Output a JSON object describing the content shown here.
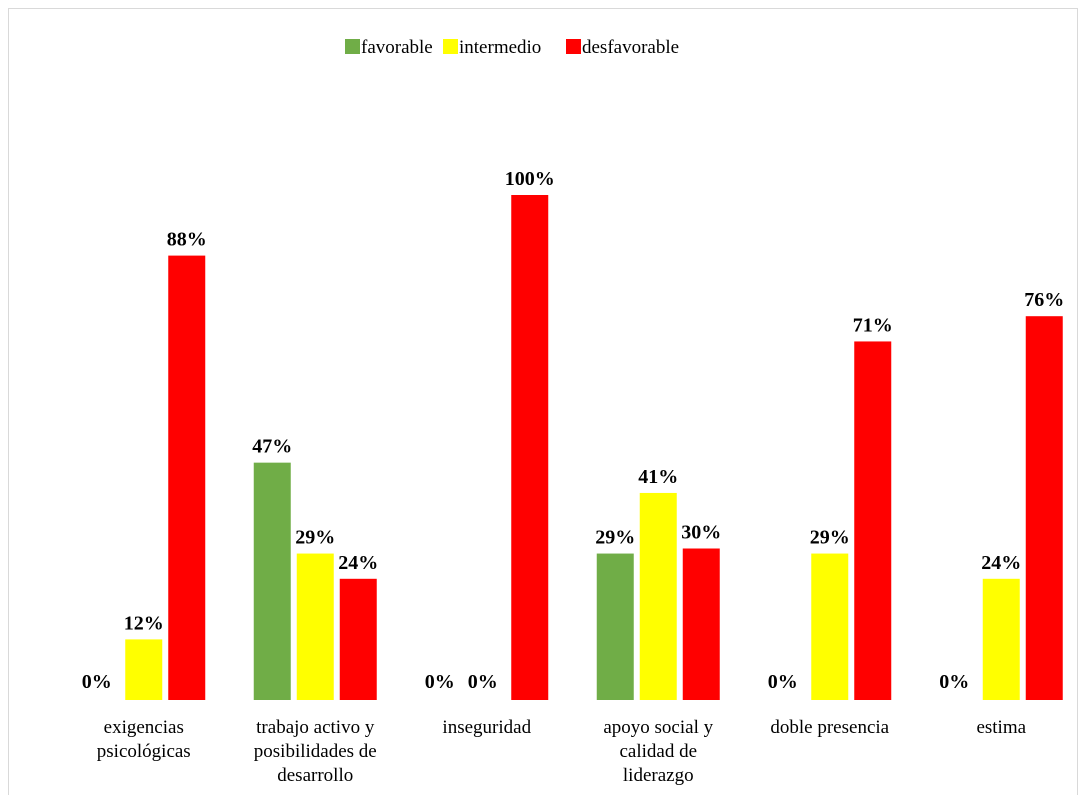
{
  "chart_data": {
    "type": "bar",
    "title": "",
    "xlabel": "",
    "ylabel": "",
    "ylim": [
      0,
      100
    ],
    "grid": false,
    "legend_position": "top",
    "categories": [
      [
        "exigencias",
        "psicológicas"
      ],
      [
        "trabajo activo y",
        "posibilidades de",
        "desarrollo"
      ],
      [
        "inseguridad"
      ],
      [
        "apoyo social y",
        "calidad de",
        "liderazgo"
      ],
      [
        "doble presencia"
      ],
      [
        "estima"
      ]
    ],
    "series": [
      {
        "name": "favorable",
        "color": "#70ad47",
        "values": [
          0,
          47,
          0,
          29,
          0,
          0
        ]
      },
      {
        "name": "intermedio",
        "color": "#ffff00",
        "values": [
          12,
          29,
          0,
          41,
          29,
          24
        ]
      },
      {
        "name": "desfavorable",
        "color": "#ff0000",
        "values": [
          88,
          24,
          100,
          30,
          71,
          76
        ]
      }
    ],
    "value_labels": [
      [
        "0%",
        "12%",
        "88%"
      ],
      [
        "47%",
        "29%",
        "24%"
      ],
      [
        "0%",
        "0%",
        "100%"
      ],
      [
        "29%",
        "41%",
        "30%"
      ],
      [
        "0%",
        "29%",
        "71%"
      ],
      [
        "0%",
        "24%",
        "76%"
      ]
    ]
  }
}
